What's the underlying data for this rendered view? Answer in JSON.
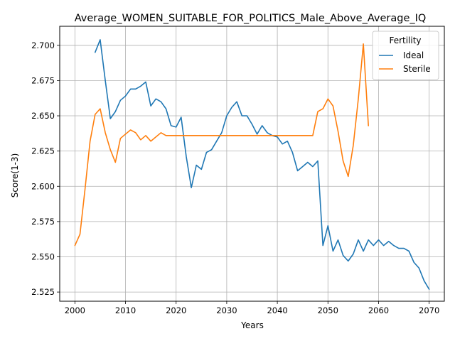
{
  "chart_data": {
    "type": "line",
    "title": "Average_WOMEN_SUITABLE_FOR_POLITICS_Male_Above_Average_IQ",
    "xlabel": "Years",
    "ylabel": "Score(1-3)",
    "xlim": [
      1997,
      2073
    ],
    "ylim": [
      2.5185,
      2.7135
    ],
    "xticks": [
      2000,
      2010,
      2020,
      2030,
      2040,
      2050,
      2060,
      2070
    ],
    "yticks": [
      2.525,
      2.55,
      2.575,
      2.6,
      2.625,
      2.65,
      2.675,
      2.7
    ],
    "xtick_labels": [
      "2000",
      "2010",
      "2020",
      "2030",
      "2040",
      "2050",
      "2060",
      "2070"
    ],
    "ytick_labels": [
      "2.525",
      "2.550",
      "2.575",
      "2.600",
      "2.625",
      "2.650",
      "2.675",
      "2.700"
    ],
    "grid": true,
    "legend": {
      "title": "Fertility",
      "placement": "top-right"
    },
    "series": [
      {
        "name": "Ideal",
        "color": "#1f77b4",
        "x": [
          2004,
          2005,
          2006,
          2007,
          2008,
          2009,
          2010,
          2011,
          2012,
          2013,
          2014,
          2015,
          2016,
          2017,
          2018,
          2019,
          2020,
          2021,
          2022,
          2023,
          2024,
          2025,
          2026,
          2027,
          2028,
          2029,
          2030,
          2031,
          2032,
          2033,
          2034,
          2035,
          2036,
          2037,
          2038,
          2039,
          2040,
          2041,
          2042,
          2043,
          2044,
          2045,
          2046,
          2047,
          2048,
          2049,
          2050,
          2051,
          2052,
          2053,
          2054,
          2055,
          2056,
          2057,
          2058,
          2059,
          2060,
          2061,
          2062,
          2063,
          2064,
          2065,
          2066,
          2067,
          2068,
          2069,
          2070
        ],
        "y": [
          2.695,
          2.704,
          2.675,
          2.648,
          2.653,
          2.661,
          2.664,
          2.669,
          2.669,
          2.671,
          2.674,
          2.657,
          2.662,
          2.66,
          2.655,
          2.643,
          2.642,
          2.649,
          2.621,
          2.599,
          2.615,
          2.612,
          2.624,
          2.626,
          2.632,
          2.638,
          2.65,
          2.656,
          2.66,
          2.65,
          2.65,
          2.644,
          2.637,
          2.643,
          2.638,
          2.636,
          2.635,
          2.63,
          2.632,
          2.624,
          2.611,
          2.614,
          2.617,
          2.614,
          2.618,
          2.558,
          2.572,
          2.554,
          2.562,
          2.551,
          2.547,
          2.552,
          2.562,
          2.554,
          2.562,
          2.558,
          2.562,
          2.558,
          2.561,
          2.558,
          2.556,
          2.556,
          2.554,
          2.546,
          2.542,
          2.533,
          2.527
        ]
      },
      {
        "name": "Sterile",
        "color": "#ff7f0e",
        "x": [
          2000,
          2001,
          2002,
          2003,
          2004,
          2005,
          2006,
          2007,
          2008,
          2009,
          2010,
          2011,
          2012,
          2013,
          2014,
          2015,
          2016,
          2017,
          2018,
          2019,
          2020,
          2025,
          2030,
          2035,
          2040,
          2045,
          2047,
          2048,
          2049,
          2050,
          2051,
          2052,
          2053,
          2054,
          2055,
          2056,
          2057,
          2058
        ],
        "y": [
          2.558,
          2.566,
          2.598,
          2.632,
          2.651,
          2.655,
          2.638,
          2.626,
          2.617,
          2.634,
          2.637,
          2.64,
          2.638,
          2.633,
          2.636,
          2.632,
          2.635,
          2.638,
          2.636,
          2.636,
          2.636,
          2.636,
          2.636,
          2.636,
          2.636,
          2.636,
          2.636,
          2.653,
          2.655,
          2.662,
          2.657,
          2.639,
          2.618,
          2.607,
          2.629,
          2.662,
          2.701,
          2.643
        ]
      }
    ]
  }
}
